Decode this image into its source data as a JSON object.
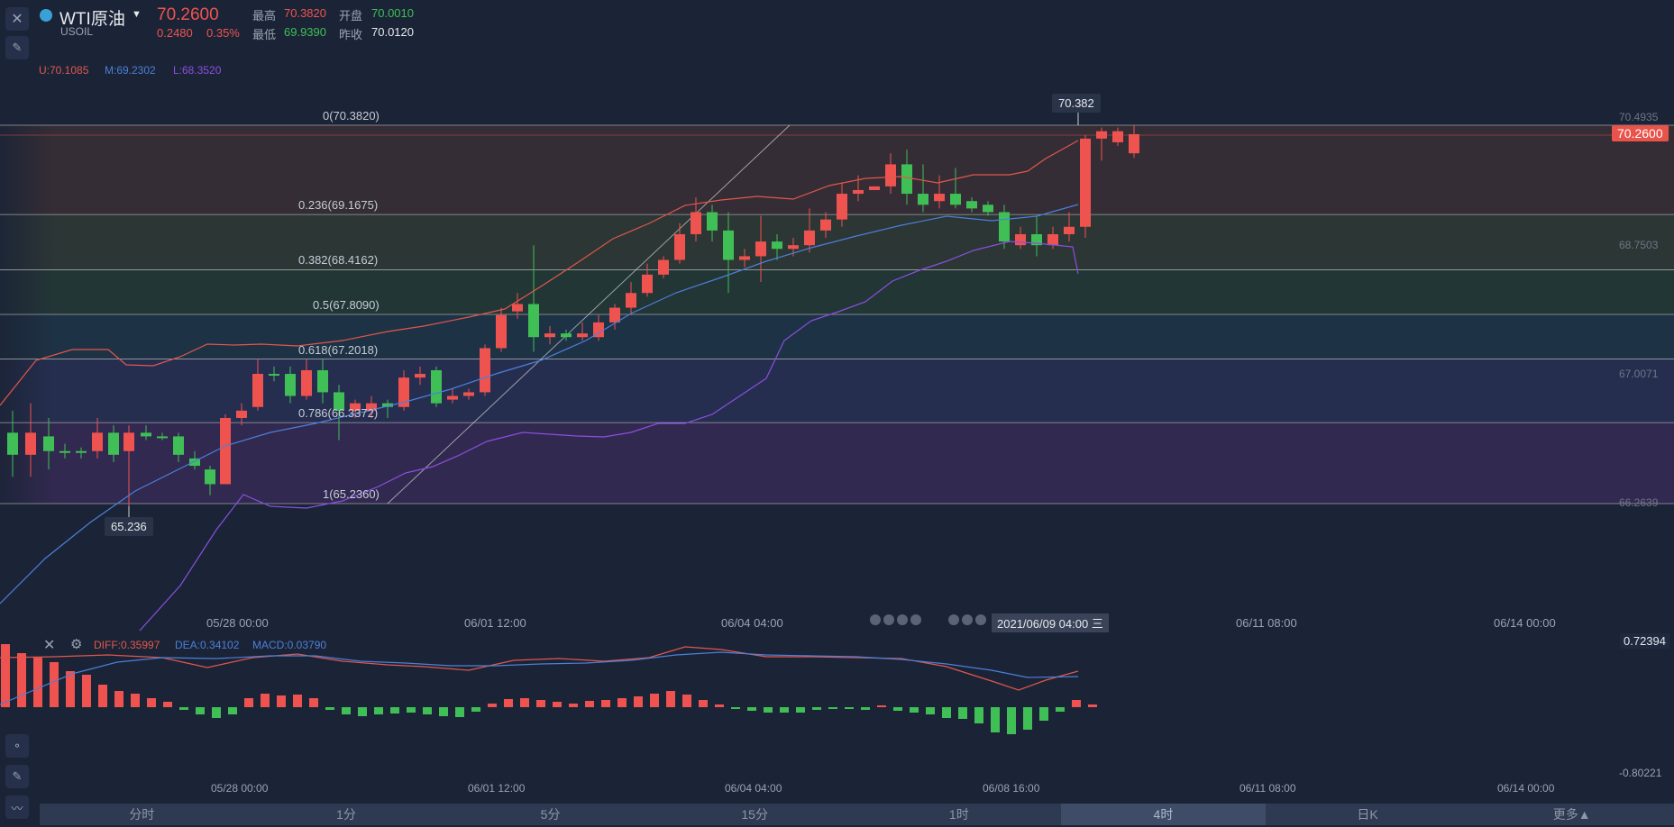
{
  "header": {
    "symbol": "WTI原油",
    "code": "USOIL",
    "price": "70.2600",
    "change": "0.2480",
    "change_pct": "0.35%",
    "high_label": "最高",
    "high": "70.3820",
    "open_label": "开盘",
    "open": "70.0010",
    "low_label": "最低",
    "low": "69.9390",
    "prev_close_label": "昨收",
    "prev_close": "70.0120"
  },
  "indicator": {
    "u": "U:70.1085",
    "m": "M:69.2302",
    "l": "L:68.3520"
  },
  "fib_levels": [
    {
      "label": "0(70.3820)",
      "value": 70.382
    },
    {
      "label": "0.236(69.1675)",
      "value": 69.1675
    },
    {
      "label": "0.382(68.4162)",
      "value": 68.4162
    },
    {
      "label": "0.5(67.8090)",
      "value": 67.809
    },
    {
      "label": "0.618(67.2018)",
      "value": 67.2018
    },
    {
      "label": "0.786(66.3372)",
      "value": 66.3372
    },
    {
      "label": "1(65.2360)",
      "value": 65.236
    }
  ],
  "price_axis": [
    "70.4935",
    "68.7503",
    "67.0071",
    "66.2639"
  ],
  "current_price_tag": "70.2600",
  "high_tip": "70.382",
  "low_tip": "65.236",
  "time_axis": [
    "05/28 00:00",
    "06/01 12:00",
    "06/04 04:00",
    "06/11 08:00",
    "06/14 00:00"
  ],
  "crosshair_time": "2021/06/09 04:00 三",
  "macd": {
    "diff": "DIFF:0.35997",
    "dea": "DEA:0.34102",
    "macd": "MACD:0.03790",
    "axis_top": "0.72394",
    "axis_bottom": "-0.80221"
  },
  "macd_time_axis": [
    "05/28 00:00",
    "06/01 12:00",
    "06/04 04:00",
    "06/08 16:00",
    "06/11 08:00",
    "06/14 00:00"
  ],
  "tabs": [
    "分时",
    "1分",
    "5分",
    "15分",
    "1时",
    "4时",
    "日K",
    "更多▲"
  ],
  "active_tab": "4时",
  "colors": {
    "up": "#ef5350",
    "down": "#3fbf55",
    "bg": "#1b2436",
    "boll_u": "#e0574c",
    "boll_m": "#4c7fd8",
    "boll_l": "#8a4fe0"
  }
}
